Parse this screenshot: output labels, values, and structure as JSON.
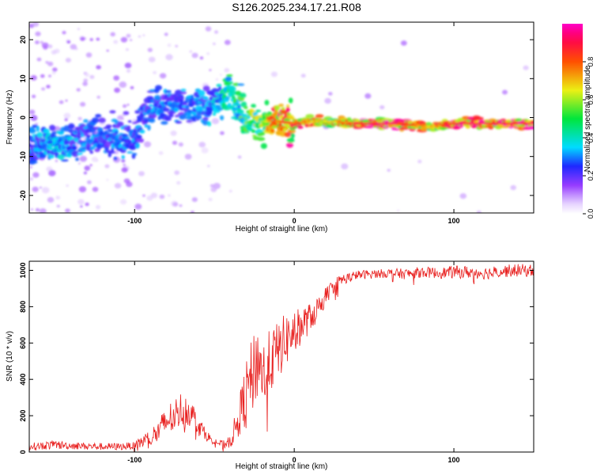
{
  "figure_title": "S126.2025.234.17.21.R08",
  "chart_data": [
    {
      "type": "heatmap",
      "title": "S126.2025.234.17.21.R08",
      "xlabel": "Height of straight line (km)",
      "ylabel": "Frequency (Hz)",
      "xlim": [
        -166,
        150
      ],
      "ylim": [
        -24.5,
        24.5
      ],
      "xticks": [
        -100,
        0,
        100
      ],
      "yticks": [
        -20,
        -10,
        0,
        10,
        20
      ],
      "colorbar": {
        "label": "Normalized spectral amplitude",
        "range": [
          0,
          1
        ],
        "ticks": [
          "0.0",
          "0.2",
          "0.4",
          "0.6",
          "0.8"
        ],
        "colormap": "rainbow (white-violet-blue-cyan-green-yellow-red-magenta)"
      },
      "ridge": {
        "description": "dominant frequency vs height",
        "x": [
          -166,
          -150,
          -130,
          -110,
          -100,
          -90,
          -80,
          -70,
          -60,
          -50,
          -45,
          -40,
          -35,
          -30,
          -25,
          -20,
          -10,
          0,
          10,
          20,
          40,
          60,
          75,
          80,
          85,
          90,
          100,
          120,
          150
        ],
        "y": [
          -7,
          -7,
          -5,
          -5,
          -5,
          3,
          3,
          3.5,
          3,
          4,
          5,
          7,
          3,
          0,
          -1,
          -1,
          -1,
          -1.5,
          -1,
          -1,
          -1.5,
          -1.5,
          -2,
          -2,
          -2.5,
          -2,
          -1.5,
          -1.5,
          -1.5
        ],
        "amplitude": [
          0.3,
          0.35,
          0.3,
          0.3,
          0.3,
          0.3,
          0.3,
          0.3,
          0.3,
          0.35,
          0.4,
          0.5,
          0.5,
          0.55,
          0.6,
          0.65,
          0.85,
          0.85,
          0.8,
          0.65,
          0.9,
          0.95,
          0.85,
          0.8,
          0.75,
          0.8,
          0.9,
          0.95,
          0.95
        ]
      },
      "grid": false
    },
    {
      "type": "line",
      "xlabel": "Height of straight line (km)",
      "ylabel": "SNR (10 * v/v)",
      "xlim": [
        -166,
        150
      ],
      "ylim": [
        0,
        1050
      ],
      "xticks": [
        -100,
        0,
        100
      ],
      "yticks": [
        0,
        200,
        400,
        600,
        800,
        1000
      ],
      "series": [
        {
          "color": "#e8201f",
          "x": [
            -166,
            -150,
            -140,
            -120,
            -110,
            -100,
            -95,
            -90,
            -85,
            -80,
            -75,
            -70,
            -65,
            -60,
            -55,
            -50,
            -45,
            -40,
            -35,
            -30,
            -25,
            -22,
            -20,
            -15,
            -10,
            -5,
            0,
            5,
            10,
            15,
            20,
            25,
            30,
            40,
            50,
            60,
            70,
            80,
            90,
            100,
            110,
            120,
            130,
            140,
            150
          ],
          "values": [
            30,
            40,
            35,
            30,
            30,
            35,
            60,
            80,
            110,
            170,
            200,
            240,
            220,
            150,
            90,
            60,
            40,
            60,
            180,
            330,
            450,
            520,
            430,
            500,
            560,
            620,
            660,
            700,
            740,
            800,
            860,
            920,
            950,
            975,
            980,
            985,
            980,
            990,
            985,
            990,
            990,
            985,
            995,
            1000,
            1000
          ],
          "noise_amplitude": [
            20,
            25,
            20,
            20,
            20,
            20,
            40,
            50,
            70,
            90,
            100,
            100,
            80,
            60,
            30,
            20,
            25,
            40,
            100,
            180,
            220,
            200,
            180,
            180,
            160,
            150,
            120,
            100,
            80,
            60,
            50,
            40,
            30,
            25,
            25,
            25,
            30,
            30,
            30,
            35,
            35,
            35,
            35,
            35,
            35
          ]
        }
      ],
      "grid": false
    }
  ]
}
